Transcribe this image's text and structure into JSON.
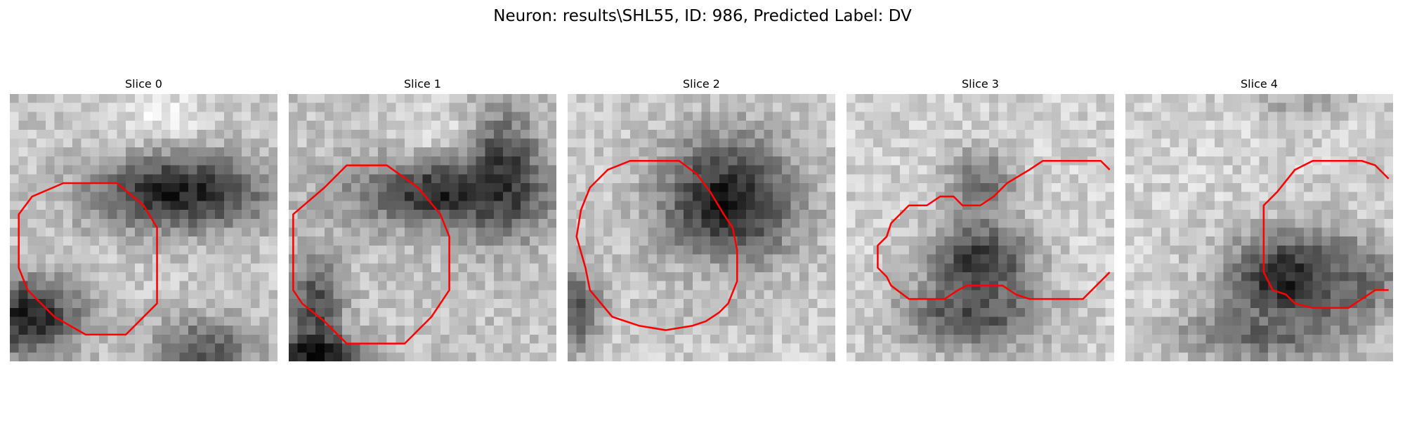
{
  "figure": {
    "title": "Neuron: results\\SHL55, ID: 986, Predicted Label: DV"
  },
  "image_grid": {
    "rows": 30,
    "cols": 30,
    "colormap": "gray",
    "contour_color": "#ff0000"
  },
  "panels": [
    {
      "title": "Slice 0",
      "blobs": [
        {
          "cx": 17,
          "cy": 2.5,
          "rx": 6,
          "ry": 4,
          "v": 0.92
        },
        {
          "cx": 19,
          "cy": 11,
          "rx": 10,
          "ry": 4.5,
          "v": 0.12
        },
        {
          "cx": 2,
          "cy": 25,
          "rx": 6,
          "ry": 4.5,
          "v": 0.1
        },
        {
          "cx": 22,
          "cy": 28.5,
          "rx": 6,
          "ry": 3.5,
          "v": 0.35
        }
      ],
      "background": 0.78,
      "contour": [
        [
          6,
          10
        ],
        [
          12,
          10
        ],
        [
          15,
          12.5
        ],
        [
          16.5,
          15
        ],
        [
          16.5,
          23.5
        ],
        [
          13,
          27
        ],
        [
          8.5,
          27
        ],
        [
          5,
          25
        ],
        [
          2,
          22
        ],
        [
          1,
          19.5
        ],
        [
          1,
          13.5
        ],
        [
          2.5,
          11.5
        ]
      ]
    },
    {
      "title": "Slice 1",
      "blobs": [
        {
          "cx": 17,
          "cy": 5,
          "rx": 5,
          "ry": 4,
          "v": 0.9
        },
        {
          "cx": 18,
          "cy": 11,
          "rx": 11,
          "ry": 4,
          "v": 0.15
        },
        {
          "cx": 24,
          "cy": 9,
          "rx": 4,
          "ry": 7,
          "v": 0.2
        },
        {
          "cx": 3,
          "cy": 24,
          "rx": 3,
          "ry": 6,
          "v": 0.28
        },
        {
          "cx": 3,
          "cy": 29,
          "rx": 5,
          "ry": 2,
          "v": 0.05
        }
      ],
      "background": 0.76,
      "contour": [
        [
          0.5,
          13.5
        ],
        [
          4,
          10.5
        ],
        [
          6.5,
          8
        ],
        [
          11,
          8
        ],
        [
          14.5,
          10.5
        ],
        [
          17,
          13.5
        ],
        [
          18,
          16
        ],
        [
          18,
          22
        ],
        [
          16,
          25
        ],
        [
          13,
          28
        ],
        [
          6.5,
          28
        ],
        [
          4,
          25.5
        ],
        [
          1.5,
          23.5
        ],
        [
          0.5,
          22
        ]
      ]
    },
    {
      "title": "Slice 2",
      "blobs": [
        {
          "cx": 18,
          "cy": 12,
          "rx": 8,
          "ry": 7.5,
          "v": 0.1
        },
        {
          "cx": 14,
          "cy": 22,
          "rx": 6,
          "ry": 4,
          "v": 0.72
        },
        {
          "cx": 1,
          "cy": 24,
          "rx": 3,
          "ry": 5,
          "v": 0.35
        }
      ],
      "background": 0.8,
      "contour": [
        [
          7,
          7.5
        ],
        [
          12.5,
          7.5
        ],
        [
          14.5,
          9
        ],
        [
          16,
          11
        ],
        [
          17.5,
          13.5
        ],
        [
          18.5,
          15
        ],
        [
          19,
          17.5
        ],
        [
          19,
          21
        ],
        [
          18,
          23.5
        ],
        [
          17,
          24.5
        ],
        [
          15.5,
          25.5
        ],
        [
          14,
          26
        ],
        [
          11,
          26.5
        ],
        [
          8,
          26
        ],
        [
          5,
          25
        ],
        [
          2.5,
          22
        ],
        [
          2,
          19.5
        ],
        [
          1,
          16
        ],
        [
          1.5,
          13
        ],
        [
          2.5,
          10.5
        ],
        [
          4.5,
          8.5
        ]
      ]
    },
    {
      "title": "Slice 3",
      "blobs": [
        {
          "cx": 15,
          "cy": 10,
          "rx": 4,
          "ry": 4,
          "v": 0.45
        },
        {
          "cx": 15,
          "cy": 19,
          "rx": 6,
          "ry": 5,
          "v": 0.2
        },
        {
          "cx": 14,
          "cy": 25,
          "rx": 8,
          "ry": 4,
          "v": 0.3
        }
      ],
      "background": 0.82,
      "contour": [
        [
          29.5,
          8.5
        ],
        [
          28.5,
          7.5
        ],
        [
          22,
          7.5
        ],
        [
          20.5,
          8.5
        ],
        [
          18,
          10
        ],
        [
          16.5,
          11.5
        ],
        [
          15,
          12.5
        ],
        [
          13,
          12.5
        ],
        [
          12,
          11.5
        ],
        [
          10.5,
          11.5
        ],
        [
          9,
          12.5
        ],
        [
          7,
          12.5
        ],
        [
          5,
          14.5
        ],
        [
          4.5,
          16
        ],
        [
          3.5,
          17
        ],
        [
          3.5,
          19.5
        ],
        [
          4.5,
          20.5
        ],
        [
          5,
          21.5
        ],
        [
          7,
          23
        ],
        [
          11,
          23
        ],
        [
          12.5,
          22
        ],
        [
          13.5,
          21.5
        ],
        [
          17.5,
          21.5
        ],
        [
          19,
          22.5
        ],
        [
          20.5,
          23
        ],
        [
          26.5,
          23
        ],
        [
          27.5,
          22
        ],
        [
          29.5,
          20
        ]
      ]
    },
    {
      "title": "Slice 4",
      "blobs": [
        {
          "cx": 19,
          "cy": 21,
          "rx": 8,
          "ry": 5.5,
          "v": 0.05
        },
        {
          "cx": 25,
          "cy": 21,
          "rx": 6,
          "ry": 4,
          "v": 0.4
        },
        {
          "cx": 15,
          "cy": 27,
          "rx": 10,
          "ry": 3,
          "v": 0.4
        },
        {
          "cx": 20,
          "cy": 1,
          "rx": 6,
          "ry": 2,
          "v": 0.65
        }
      ],
      "background": 0.82,
      "contour": [
        [
          29.5,
          9.5
        ],
        [
          28,
          8
        ],
        [
          26.5,
          7.5
        ],
        [
          21,
          7.5
        ],
        [
          19,
          8.5
        ],
        [
          17,
          11
        ],
        [
          15.5,
          12.5
        ],
        [
          15.5,
          20
        ],
        [
          16.5,
          22
        ],
        [
          18,
          22.5
        ],
        [
          19,
          23.5
        ],
        [
          21,
          24
        ],
        [
          25,
          24
        ],
        [
          26.5,
          23
        ],
        [
          28,
          22
        ],
        [
          29.5,
          22
        ]
      ]
    }
  ]
}
